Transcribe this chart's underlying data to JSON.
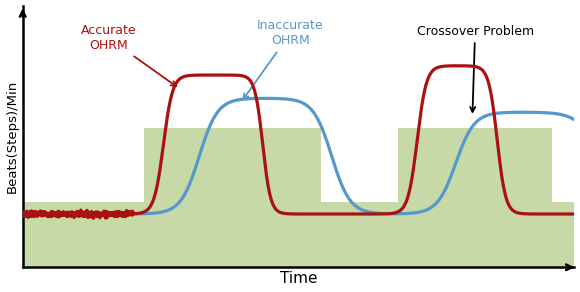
{
  "xlabel": "Time",
  "ylabel": "Beats(Steps)/Min",
  "background_color": "#ffffff",
  "green_fill_color": "#c8d9a8",
  "accurate_color": "#aa1111",
  "inaccurate_color": "#5599cc",
  "xlim": [
    0,
    10.0
  ],
  "ylim": [
    -0.05,
    1.08
  ],
  "label_accurate": "Accurate\nOHRM",
  "label_inaccurate": "Inaccurate\nOHRM",
  "label_crossover": "Crossover Problem"
}
